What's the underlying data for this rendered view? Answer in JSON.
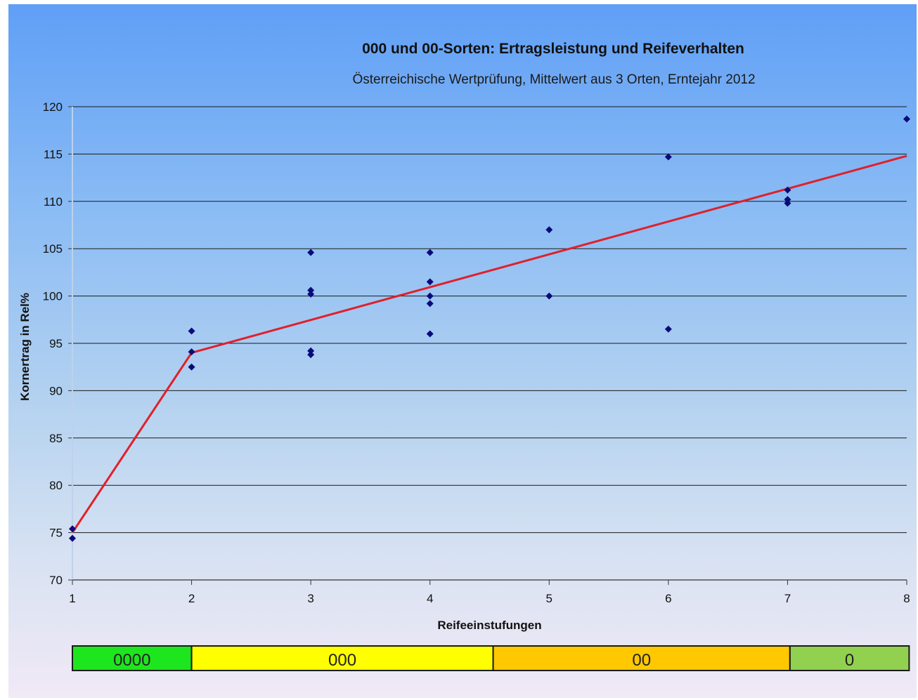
{
  "chart_data": {
    "type": "scatter",
    "title": "000 und 00-Sorten: Ertragsleistung und Reifeverhalten",
    "subtitle": "Österreichische Wertprüfung, Mittelwert aus 3 Orten, Erntejahr 2012",
    "xlabel": "Reifeeinstufungen",
    "ylabel": "Kornertrag in Rel%",
    "xlim": [
      1,
      8
    ],
    "ylim": [
      70,
      120
    ],
    "x_ticks": [
      "1",
      "2",
      "3",
      "4",
      "5",
      "6",
      "7",
      "8"
    ],
    "y_ticks": [
      "70",
      "75",
      "80",
      "85",
      "90",
      "95",
      "100",
      "105",
      "110",
      "115",
      "120"
    ],
    "grid": "horizontal",
    "legend": "none",
    "points": [
      {
        "x": 1,
        "y": 75.4
      },
      {
        "x": 1,
        "y": 74.4
      },
      {
        "x": 2,
        "y": 96.3
      },
      {
        "x": 2,
        "y": 94.1
      },
      {
        "x": 2,
        "y": 92.5
      },
      {
        "x": 3,
        "y": 104.6
      },
      {
        "x": 3,
        "y": 100.6
      },
      {
        "x": 3,
        "y": 100.2
      },
      {
        "x": 3,
        "y": 94.2
      },
      {
        "x": 3,
        "y": 93.8
      },
      {
        "x": 4,
        "y": 104.6
      },
      {
        "x": 4,
        "y": 101.5
      },
      {
        "x": 4,
        "y": 100.0
      },
      {
        "x": 4,
        "y": 99.2
      },
      {
        "x": 4,
        "y": 96.0
      },
      {
        "x": 5,
        "y": 107.0
      },
      {
        "x": 5,
        "y": 100.0
      },
      {
        "x": 6,
        "y": 114.7
      },
      {
        "x": 6,
        "y": 96.5
      },
      {
        "x": 7,
        "y": 111.2
      },
      {
        "x": 7,
        "y": 110.2
      },
      {
        "x": 7,
        "y": 109.8
      },
      {
        "x": 8,
        "y": 118.7
      }
    ],
    "trend_line": {
      "color": "#e0202a",
      "points": [
        {
          "x": 1,
          "y": 75.0
        },
        {
          "x": 2,
          "y": 94.0
        },
        {
          "x": 8,
          "y": 114.8
        }
      ]
    },
    "point_color": "#0a0a7a",
    "maturity_bands": [
      {
        "label": "0000",
        "from": 1,
        "to": 2,
        "color": "#1ee61e"
      },
      {
        "label": "000",
        "from": 2,
        "to": 4.53,
        "color": "#ffff00"
      },
      {
        "label": "00",
        "from": 4.53,
        "to": 7.02,
        "color": "#ffc800"
      },
      {
        "label": "0",
        "from": 7.02,
        "to": 8.02,
        "color": "#92d050"
      }
    ]
  }
}
